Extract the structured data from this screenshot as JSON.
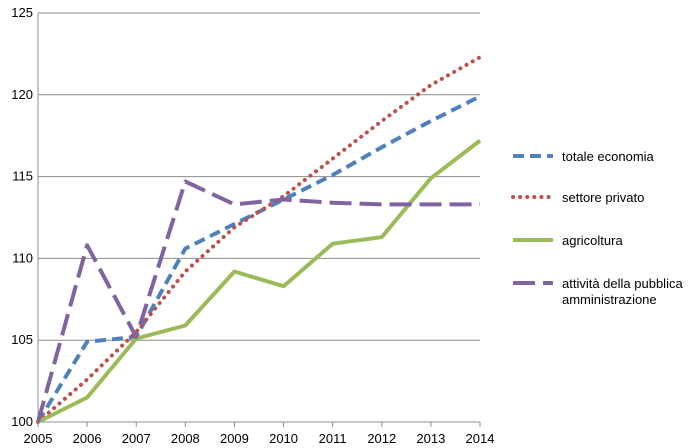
{
  "chart_data": {
    "type": "line",
    "x": [
      2005,
      2006,
      2007,
      2008,
      2009,
      2010,
      2011,
      2012,
      2013,
      2014
    ],
    "ylim": [
      100,
      125
    ],
    "yticks": [
      100,
      105,
      110,
      115,
      120,
      125
    ],
    "grid": "horizontal",
    "legend_position": "right",
    "title": "",
    "xlabel": "",
    "ylabel": "",
    "series": [
      {
        "name": "totale economia",
        "style": "dashed",
        "color": "#4F81BD",
        "values": [
          100,
          104.9,
          105.2,
          110.6,
          112.1,
          113.6,
          115.1,
          116.8,
          118.4,
          119.9
        ]
      },
      {
        "name": "settore privato",
        "style": "dotted",
        "color": "#C0504D",
        "values": [
          100,
          102.6,
          105.5,
          109.2,
          111.9,
          113.8,
          116.1,
          118.4,
          120.6,
          122.3
        ]
      },
      {
        "name": "agricoltura",
        "style": "solid",
        "color": "#9BBB59",
        "values": [
          100,
          101.5,
          105.1,
          105.9,
          109.2,
          108.3,
          110.9,
          111.3,
          114.9,
          117.2
        ]
      },
      {
        "name": "attività della pubblica amministrazione",
        "legend_lines": [
          "attività della pubblica",
          "amministrazione"
        ],
        "style": "long-dash",
        "color": "#8064A2",
        "values": [
          100,
          110.8,
          105.2,
          114.7,
          113.3,
          113.6,
          113.4,
          113.3,
          113.3,
          113.3
        ]
      }
    ]
  }
}
